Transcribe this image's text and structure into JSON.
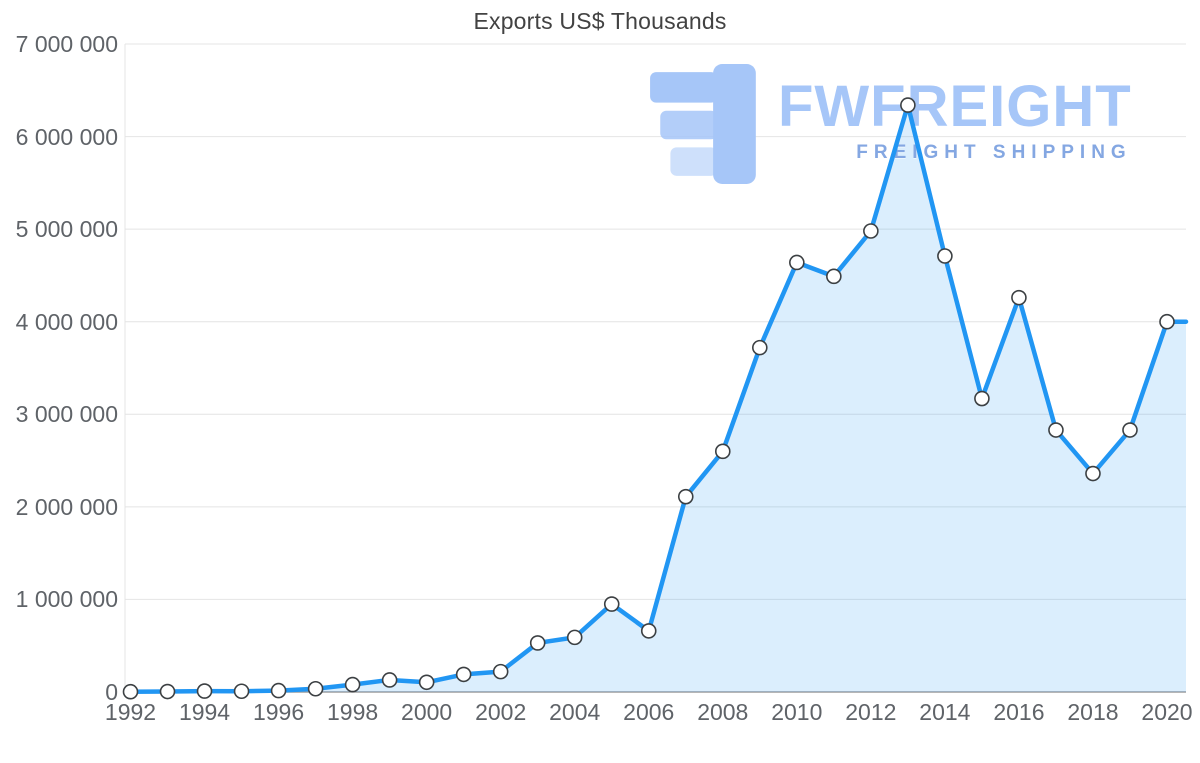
{
  "page": {
    "background": "#ffffff"
  },
  "chart_data": {
    "type": "area",
    "title": "Exports US$ Thousands",
    "x": [
      1992,
      1993,
      1994,
      1995,
      1996,
      1997,
      1998,
      1999,
      2000,
      2001,
      2002,
      2003,
      2004,
      2005,
      2006,
      2007,
      2008,
      2009,
      2010,
      2011,
      2012,
      2013,
      2014,
      2015,
      2016,
      2017,
      2018,
      2019,
      2020
    ],
    "values": [
      3000,
      5000,
      10000,
      8000,
      15000,
      35000,
      80000,
      130000,
      105000,
      190000,
      220000,
      530000,
      590000,
      950000,
      660000,
      2110000,
      2600000,
      3720000,
      4640000,
      4490000,
      4980000,
      6340000,
      4710000,
      3170000,
      4260000,
      2830000,
      2360000,
      2830000,
      4000000
    ],
    "x_tick_labels": [
      "1992",
      "1994",
      "1996",
      "1998",
      "2000",
      "2002",
      "2004",
      "2006",
      "2008",
      "2010",
      "2012",
      "2014",
      "2016",
      "2018",
      "2020"
    ],
    "y_ticks": [
      {
        "value": 0,
        "label": "0"
      },
      {
        "value": 1000000,
        "label": "1 000 000"
      },
      {
        "value": 2000000,
        "label": "2 000 000"
      },
      {
        "value": 3000000,
        "label": "3 000 000"
      },
      {
        "value": 4000000,
        "label": "4 000 000"
      },
      {
        "value": 5000000,
        "label": "5 000 000"
      },
      {
        "value": 6000000,
        "label": "6 000 000"
      },
      {
        "value": 7000000,
        "label": "7 000 000"
      }
    ],
    "ylim": [
      0,
      7000000
    ],
    "grid": "horizontal",
    "legend": "none",
    "line_color": "#2196f3",
    "fill_color": "rgba(33,150,243,0.16)",
    "marker_fill": "#ffffff",
    "marker_stroke": "#3c4043",
    "gridline_color": "#e4e4e4",
    "axis_line_color": "#9e9e9e",
    "tick_label_color": "#5f6368"
  },
  "watermark": {
    "brand": "FWFREIGHT",
    "tagline": "FREIGHT SHIPPING",
    "color": "#a6c6f8",
    "tagline_color": "#84a7e2"
  }
}
